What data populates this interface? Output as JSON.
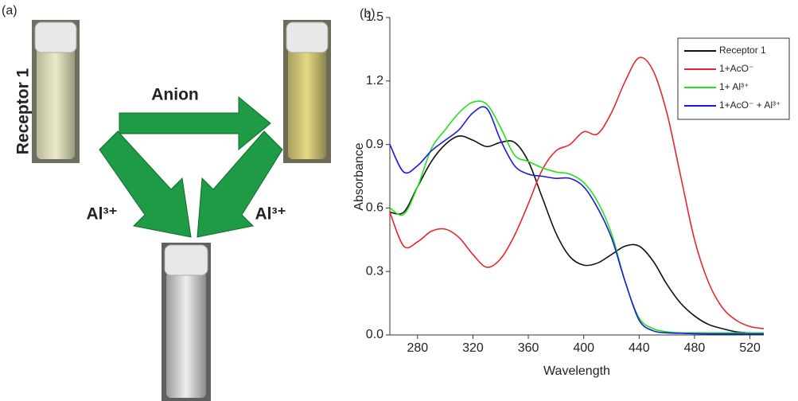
{
  "panel_a": {
    "label": "(a)",
    "sample": "Receptor 1",
    "top_arrow": "Anion",
    "left_arrow": "Al³⁺",
    "right_arrow": "Al³⁺"
  },
  "chart_data": {
    "type": "line",
    "panel_label": "(b)",
    "x_label": "Wavelength",
    "y_label": "Absorbance",
    "x": [
      260,
      270,
      280,
      290,
      300,
      310,
      320,
      330,
      340,
      350,
      360,
      370,
      380,
      390,
      400,
      410,
      420,
      430,
      440,
      450,
      460,
      470,
      480,
      490,
      500,
      510,
      520,
      530
    ],
    "series": [
      {
        "name": "Receptor 1",
        "color": "#111111",
        "values": [
          0.58,
          0.58,
          0.7,
          0.82,
          0.9,
          0.94,
          0.92,
          0.89,
          0.91,
          0.91,
          0.82,
          0.65,
          0.48,
          0.37,
          0.33,
          0.34,
          0.38,
          0.42,
          0.42,
          0.35,
          0.24,
          0.15,
          0.09,
          0.05,
          0.03,
          0.015,
          0.01,
          0.005
        ]
      },
      {
        "name": "1+AcO⁻",
        "color": "#e8262a",
        "values": [
          0.58,
          0.42,
          0.44,
          0.49,
          0.5,
          0.46,
          0.38,
          0.32,
          0.36,
          0.47,
          0.62,
          0.78,
          0.87,
          0.9,
          0.96,
          0.95,
          1.05,
          1.2,
          1.31,
          1.25,
          1.05,
          0.75,
          0.45,
          0.25,
          0.13,
          0.07,
          0.04,
          0.03
        ]
      },
      {
        "name": "1+ Al³⁺",
        "color": "#22e022",
        "values": [
          0.6,
          0.57,
          0.7,
          0.88,
          0.97,
          1.05,
          1.1,
          1.09,
          0.98,
          0.85,
          0.82,
          0.79,
          0.77,
          0.76,
          0.72,
          0.63,
          0.48,
          0.25,
          0.08,
          0.03,
          0.015,
          0.01,
          0.01,
          0.01,
          0.01,
          0.01,
          0.01,
          0.01
        ]
      },
      {
        "name": "1+AcO⁻ + Al³⁺",
        "color": "#1a1adc",
        "values": [
          0.9,
          0.77,
          0.8,
          0.87,
          0.92,
          0.97,
          1.05,
          1.07,
          0.92,
          0.8,
          0.76,
          0.75,
          0.74,
          0.74,
          0.7,
          0.6,
          0.46,
          0.25,
          0.07,
          0.02,
          0.01,
          0.008,
          0.006,
          0.005,
          0.005,
          0.005,
          0.005,
          0.005
        ]
      }
    ],
    "xlim": [
      260,
      530
    ],
    "xticks": [
      280,
      320,
      360,
      400,
      440,
      480,
      520
    ],
    "ylim": [
      0,
      1.5
    ],
    "yticks": [
      {
        "value": 0,
        "label": "0.0"
      },
      0.3,
      0.6,
      0.9,
      1.2,
      1.5
    ],
    "grid": false,
    "legend": "upper right"
  }
}
